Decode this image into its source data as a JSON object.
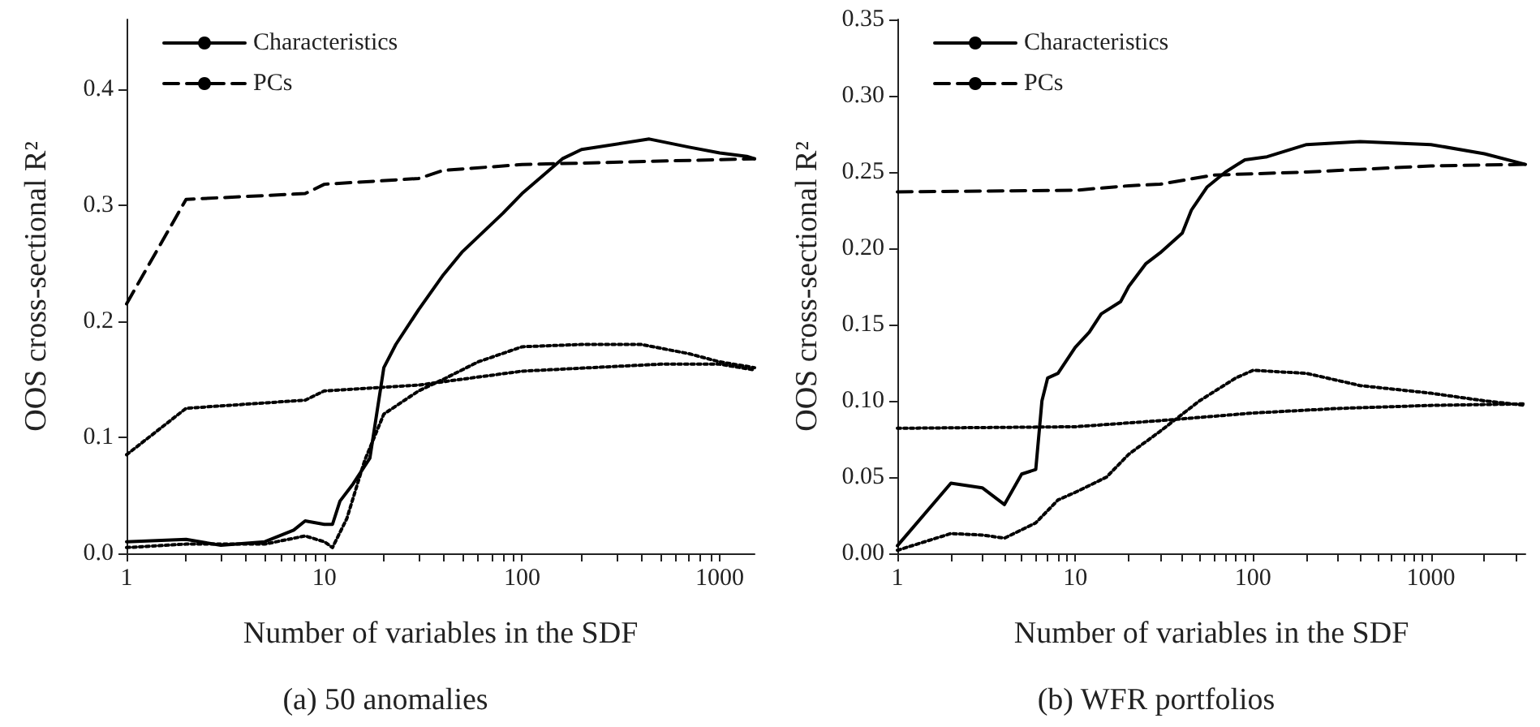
{
  "chart_data": [
    {
      "type": "line",
      "title": "(a) 50 anomalies",
      "xlabel": "Number of variables in the SDF",
      "ylabel": "OOS cross-sectional R²",
      "log": "x",
      "grid": false,
      "legend": "top left",
      "marker": "none",
      "xlim": [
        1,
        1500
      ],
      "xticks": [
        1,
        {
          "value": 2,
          "label": null
        },
        {
          "value": 3,
          "label": null
        },
        {
          "value": 4,
          "label": null
        },
        {
          "value": 5,
          "label": null
        },
        {
          "value": 6,
          "label": null
        },
        {
          "value": 7,
          "label": null
        },
        {
          "value": 8,
          "label": null
        },
        {
          "value": 9,
          "label": null
        },
        10,
        {
          "value": 20,
          "label": null
        },
        {
          "value": 30,
          "label": null
        },
        {
          "value": 40,
          "label": null
        },
        {
          "value": 50,
          "label": null
        },
        {
          "value": 60,
          "label": null
        },
        {
          "value": 70,
          "label": null
        },
        {
          "value": 80,
          "label": null
        },
        {
          "value": 90,
          "label": null
        },
        100,
        {
          "value": 200,
          "label": null
        },
        {
          "value": 300,
          "label": null
        },
        {
          "value": 400,
          "label": null
        },
        {
          "value": 500,
          "label": null
        },
        {
          "value": 600,
          "label": null
        },
        {
          "value": 700,
          "label": null
        },
        {
          "value": 800,
          "label": null
        },
        {
          "value": 900,
          "label": null
        },
        1000
      ],
      "ylim": [
        0,
        0.46
      ],
      "yticks": [
        {
          "value": 0,
          "label": "0.0"
        },
        0.1,
        0.2,
        0.3,
        0.4
      ],
      "series": [
        {
          "name": "Characteristics",
          "color": "#000000",
          "line_style": "solid",
          "x": [
            1,
            2,
            3,
            5,
            7,
            8,
            10,
            11,
            12,
            14,
            17,
            20,
            23,
            30,
            40,
            50,
            80,
            100,
            160,
            200,
            440,
            700,
            1000,
            1370,
            1500
          ],
          "values": [
            0.01,
            0.012,
            0.007,
            0.01,
            0.02,
            0.028,
            0.025,
            0.025,
            0.045,
            0.06,
            0.082,
            0.16,
            0.18,
            0.21,
            0.24,
            0.26,
            0.293,
            0.31,
            0.34,
            0.348,
            0.357,
            0.35,
            0.345,
            0.342,
            0.34
          ]
        },
        {
          "name": "PCs",
          "color": "#000000",
          "line_style": "dashed",
          "x": [
            1,
            2,
            8,
            10,
            30,
            40,
            100,
            1500
          ],
          "values": [
            0.215,
            0.305,
            0.31,
            0.318,
            0.323,
            0.33,
            0.335,
            0.34
          ]
        },
        {
          "color": "#000000",
          "line_style": "dotted",
          "x": [
            1,
            2,
            5,
            8,
            10,
            11,
            13,
            16,
            20,
            30,
            40,
            60,
            100,
            200,
            400,
            700,
            1000,
            1500
          ],
          "values": [
            0.005,
            0.008,
            0.008,
            0.015,
            0.01,
            0.005,
            0.03,
            0.08,
            0.12,
            0.14,
            0.15,
            0.165,
            0.178,
            0.18,
            0.18,
            0.172,
            0.165,
            0.16
          ]
        },
        {
          "color": "#000000",
          "line_style": "dotted",
          "x": [
            1,
            2,
            8,
            10,
            30,
            100,
            500,
            1000,
            1500
          ],
          "values": [
            0.085,
            0.125,
            0.132,
            0.14,
            0.145,
            0.157,
            0.163,
            0.163,
            0.158
          ]
        }
      ]
    },
    {
      "type": "line",
      "title": "(b) WFR portfolios",
      "xlabel": "Number of variables in the SDF",
      "ylabel": "OOS cross-sectional R²",
      "log": "x",
      "grid": false,
      "legend": "top left",
      "marker": "none",
      "xlim": [
        1,
        3400
      ],
      "xticks": [
        1,
        {
          "value": 2,
          "label": null
        },
        {
          "value": 3,
          "label": null
        },
        {
          "value": 4,
          "label": null
        },
        {
          "value": 5,
          "label": null
        },
        {
          "value": 6,
          "label": null
        },
        {
          "value": 7,
          "label": null
        },
        {
          "value": 8,
          "label": null
        },
        {
          "value": 9,
          "label": null
        },
        10,
        {
          "value": 20,
          "label": null
        },
        {
          "value": 30,
          "label": null
        },
        {
          "value": 40,
          "label": null
        },
        {
          "value": 50,
          "label": null
        },
        {
          "value": 60,
          "label": null
        },
        {
          "value": 70,
          "label": null
        },
        {
          "value": 80,
          "label": null
        },
        {
          "value": 90,
          "label": null
        },
        100,
        {
          "value": 200,
          "label": null
        },
        {
          "value": 300,
          "label": null
        },
        {
          "value": 400,
          "label": null
        },
        {
          "value": 500,
          "label": null
        },
        {
          "value": 600,
          "label": null
        },
        {
          "value": 700,
          "label": null
        },
        {
          "value": 800,
          "label": null
        },
        {
          "value": 900,
          "label": null
        },
        1000,
        {
          "value": 2000,
          "label": null
        },
        {
          "value": 3000,
          "label": null
        }
      ],
      "ylim": [
        0,
        0.35
      ],
      "yticks": [
        {
          "value": 0,
          "label": "0.00"
        },
        {
          "value": 0.05,
          "label": "0.05"
        },
        {
          "value": 0.1,
          "label": "0.10"
        },
        {
          "value": 0.15,
          "label": "0.15"
        },
        {
          "value": 0.2,
          "label": "0.20"
        },
        {
          "value": 0.25,
          "label": "0.25"
        },
        {
          "value": 0.3,
          "label": "0.30"
        },
        {
          "value": 0.35,
          "label": "0.35"
        }
      ],
      "series": [
        {
          "name": "Characteristics",
          "color": "#000000",
          "line_style": "solid",
          "x": [
            1,
            2,
            3,
            4,
            5,
            6,
            6.5,
            7,
            8,
            10,
            12,
            14,
            18,
            20,
            25,
            30,
            40,
            45,
            55,
            70,
            90,
            120,
            200,
            400,
            1000,
            2000,
            3400
          ],
          "values": [
            0.005,
            0.046,
            0.043,
            0.032,
            0.052,
            0.055,
            0.1,
            0.115,
            0.118,
            0.135,
            0.145,
            0.157,
            0.165,
            0.175,
            0.19,
            0.197,
            0.21,
            0.225,
            0.24,
            0.25,
            0.258,
            0.26,
            0.268,
            0.27,
            0.268,
            0.262,
            0.255
          ]
        },
        {
          "name": "PCs",
          "color": "#000000",
          "line_style": "dashed",
          "x": [
            1,
            10,
            20,
            30,
            60,
            200,
            1000,
            3400
          ],
          "values": [
            0.237,
            0.238,
            0.241,
            0.242,
            0.248,
            0.25,
            0.254,
            0.255
          ]
        },
        {
          "color": "#000000",
          "line_style": "dotted",
          "x": [
            1,
            2,
            3,
            4,
            6,
            8,
            10,
            15,
            20,
            30,
            50,
            80,
            100,
            200,
            400,
            1000,
            2000,
            3400
          ],
          "values": [
            0.002,
            0.013,
            0.012,
            0.01,
            0.02,
            0.035,
            0.04,
            0.05,
            0.065,
            0.08,
            0.1,
            0.115,
            0.12,
            0.118,
            0.11,
            0.105,
            0.1,
            0.097
          ]
        },
        {
          "color": "#000000",
          "line_style": "dotted",
          "x": [
            1,
            10,
            30,
            100,
            300,
            1000,
            3400
          ],
          "values": [
            0.082,
            0.083,
            0.087,
            0.092,
            0.095,
            0.097,
            0.098
          ]
        }
      ]
    }
  ]
}
